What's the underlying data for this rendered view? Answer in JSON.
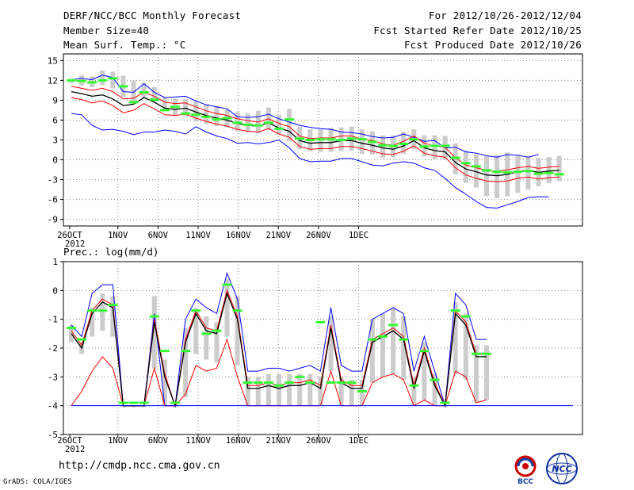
{
  "header": {
    "title": "DERF/NCC/BCC Monthly Forecast",
    "member_size": "Member Size=40",
    "variable": "Mean Surf. Temp.: °C",
    "forecast_period": "For 2012/10/26-2012/12/04",
    "refer_date": "Fcst Started Refer Date 2012/10/25",
    "produced_date": "Fcst Produced Date 2012/10/26"
  },
  "footer": {
    "url": "http://cmdp.ncc.cma.gov.cn",
    "credit": "GrADS: COLA/IGES",
    "logo_bcc": "BCC",
    "logo_ncc": "NCC"
  },
  "colors": {
    "max_min": "#0000ff",
    "member_band": "#ff0000",
    "mean": "#000000",
    "spread_bar": "#cccccc",
    "observed": "#33ff33",
    "grid": "#888888"
  },
  "chart_data": [
    {
      "type": "line",
      "title": "Mean Surf. Temp.: °C",
      "ylim": [
        -10,
        16
      ],
      "yticks": [
        -9,
        -6,
        -3,
        0,
        3,
        6,
        9,
        12,
        15
      ],
      "xtick_labels": [
        "26OCT",
        "1NOV",
        "6NOV",
        "11NOV",
        "16NOV",
        "21NOV",
        "26NOV",
        "1DEC"
      ],
      "xtick_days": [
        1,
        7,
        12,
        17,
        22,
        27,
        32,
        37
      ],
      "year_label": "2012",
      "days": 40,
      "series": [
        {
          "name": "max",
          "values": [
            7.0,
            6.8,
            5.2,
            4.5,
            4.6,
            4.3,
            3.8,
            4.2,
            4.2,
            4.5,
            4.3,
            3.9,
            5.0,
            4.2,
            3.6,
            3.2,
            2.5,
            2.6,
            2.4,
            2.6,
            3.0,
            1.8,
            0.2,
            -0.3,
            -0.2,
            -0.2,
            0.2,
            0.2,
            -0.3,
            -0.8,
            -0.9,
            -0.5,
            -0.3,
            -0.5,
            -1.2,
            -1.6,
            -2.8,
            -4.2,
            -5.2,
            -6.3,
            -7.2,
            -7.3,
            -6.8,
            -6.3,
            -5.7,
            -5.6,
            -5.6
          ]
        },
        {
          "name": "max_upper",
          "values": [
            12.1,
            12.3,
            12.1,
            12.8,
            12.4,
            10.3,
            10.2,
            11.5,
            10.2,
            9.4,
            9.5,
            9.6,
            8.9,
            8.3,
            8.0,
            7.7,
            6.5,
            6.4,
            6.5,
            6.9,
            6.2,
            5.7,
            5.2,
            4.9,
            4.7,
            4.6,
            4.2,
            4.1,
            3.9,
            3.5,
            3.3,
            3.4,
            3.9,
            3.4,
            2.8,
            2.9,
            1.8,
            1.9,
            1.2,
            1.0,
            0.6,
            0.4,
            0.8,
            0.7,
            0.4,
            0.8
          ]
        },
        {
          "name": "mean",
          "values": [
            10.3,
            10.0,
            9.6,
            9.8,
            9.2,
            8.2,
            8.4,
            9.4,
            8.7,
            7.8,
            7.6,
            7.8,
            7.2,
            6.7,
            6.3,
            6.0,
            5.5,
            5.2,
            5.1,
            5.6,
            4.8,
            4.3,
            2.9,
            2.5,
            2.6,
            2.6,
            2.9,
            2.9,
            2.5,
            2.2,
            1.8,
            1.6,
            2.1,
            2.9,
            1.8,
            1.4,
            1.2,
            -0.4,
            -1.4,
            -1.8,
            -2.3,
            -2.4,
            -2.2,
            -1.8,
            -1.6,
            -1.9,
            -1.7,
            -1.6
          ]
        },
        {
          "name": "member_upper",
          "values": [
            11.1,
            10.8,
            10.5,
            10.8,
            10.3,
            9.2,
            9.3,
            10.2,
            9.6,
            8.7,
            8.5,
            8.6,
            8.0,
            7.4,
            7.0,
            6.7,
            6.2,
            5.9,
            5.7,
            6.2,
            5.5,
            5.0,
            3.6,
            3.2,
            3.3,
            3.3,
            3.6,
            3.6,
            3.1,
            2.9,
            2.4,
            2.2,
            2.8,
            3.6,
            2.5,
            2.1,
            1.9,
            0.3,
            -0.8,
            -1.2,
            -1.6,
            -1.7,
            -1.5,
            -1.2,
            -1.0,
            -1.3,
            -1.1,
            -1.0
          ]
        },
        {
          "name": "member_lower",
          "values": [
            9.4,
            9.1,
            8.6,
            8.9,
            8.2,
            7.1,
            7.5,
            8.5,
            7.7,
            6.8,
            6.7,
            6.9,
            6.3,
            5.8,
            5.4,
            5.1,
            4.6,
            4.3,
            4.2,
            4.7,
            3.9,
            3.4,
            2.0,
            1.6,
            1.7,
            1.7,
            2.0,
            2.0,
            1.7,
            1.3,
            0.9,
            0.8,
            1.3,
            2.1,
            1.0,
            0.6,
            0.4,
            -1.2,
            -2.3,
            -2.8,
            -3.2,
            -3.3,
            -3.2,
            -2.8,
            -2.6,
            -2.9,
            -2.7,
            -2.6
          ]
        },
        {
          "name": "observed",
          "values": [
            12.0,
            11.9,
            11.7,
            12.0,
            12.3,
            11.1,
            8.7,
            10.2,
            9.1,
            7.5,
            8.0,
            7.0,
            6.8,
            6.5,
            6.1,
            6.3,
            5.6,
            5.3,
            5.2,
            5.6,
            4.7,
            6.1,
            3.2,
            3.0,
            3.1,
            3.1,
            3.0,
            3.2,
            3.1,
            2.7,
            2.2,
            2.1,
            2.4,
            3.1,
            2.0,
            2.1,
            2.1,
            0.3,
            -0.5,
            -1.0,
            -1.6,
            -1.8,
            -1.9,
            -1.8,
            -1.7,
            -2.1,
            -2.0,
            -2.2
          ]
        },
        {
          "name": "spread_high",
          "values": [
            12.2,
            12.8,
            12.6,
            13.5,
            13.3,
            12.7,
            12.0,
            11.7,
            11.0,
            9.5,
            9.2,
            9.2,
            8.9,
            8.4,
            8.1,
            7.6,
            7.2,
            7.0,
            7.4,
            7.9,
            6.8,
            7.7,
            5.0,
            4.6,
            4.6,
            4.8,
            4.9,
            5.0,
            4.6,
            4.3,
            3.7,
            3.7,
            4.2,
            4.6,
            3.7,
            3.7,
            3.6,
            2.5,
            1.4,
            0.8,
            0.5,
            0.7,
            1.1,
            0.6,
            0.4,
            0.3,
            0.4,
            0.6
          ]
        },
        {
          "name": "spread_low",
          "values": [
            11.6,
            11.2,
            11.0,
            11.3,
            10.8,
            9.5,
            8.5,
            9.3,
            8.7,
            7.4,
            6.7,
            6.6,
            5.8,
            5.4,
            5.1,
            4.9,
            4.3,
            4.2,
            4.0,
            4.5,
            3.8,
            2.8,
            1.6,
            1.3,
            1.2,
            1.2,
            1.3,
            1.4,
            0.9,
            0.8,
            0.3,
            0.4,
            0.9,
            1.6,
            0.5,
            0.1,
            0.0,
            -2.2,
            -3.5,
            -4.2,
            -5.5,
            -5.8,
            -5.5,
            -5.0,
            -4.5,
            -4.0,
            -3.5,
            -3.2
          ]
        }
      ]
    },
    {
      "type": "line",
      "title": "Prec.: log(mm/d)",
      "ylim": [
        -5,
        1
      ],
      "yticks": [
        -5,
        -4,
        -3,
        -2,
        -1,
        0,
        1
      ],
      "xtick_labels": [
        "26OCT",
        "1NOV",
        "6NOV",
        "11NOV",
        "16NOV",
        "21NOV",
        "26NOV",
        "1DEC"
      ],
      "xtick_days": [
        1,
        7,
        12,
        17,
        22,
        27,
        32,
        37
      ],
      "year_label": "2012",
      "days": 40,
      "series": [
        {
          "name": "max",
          "values": [
            -1.2,
            -1.6,
            -0.1,
            0.2,
            0.2,
            -4.0,
            -4.0,
            -4.0,
            -0.8,
            -4.0,
            -4.0,
            -1.0,
            -0.3,
            -0.6,
            -0.8,
            0.6,
            -0.3,
            -2.8,
            -2.8,
            -2.7,
            -2.7,
            -2.8,
            -2.7,
            -2.6,
            -2.8,
            -0.6,
            -2.6,
            -2.8,
            -2.8,
            -1.0,
            -0.8,
            -0.6,
            -0.8,
            -2.8,
            -1.6,
            -2.8,
            -4.0,
            -0.1,
            -0.5,
            -1.7,
            -1.7
          ]
        },
        {
          "name": "mean",
          "values": [
            -1.5,
            -2.0,
            -0.8,
            -0.4,
            -0.6,
            -4.0,
            -4.0,
            -4.0,
            -1.1,
            -3.0,
            -4.0,
            -1.8,
            -0.8,
            -1.4,
            -1.5,
            -0.1,
            -1.0,
            -3.4,
            -3.4,
            -3.3,
            -3.4,
            -3.3,
            -3.3,
            -3.2,
            -3.4,
            -1.3,
            -3.2,
            -3.4,
            -3.4,
            -1.8,
            -1.6,
            -1.4,
            -1.7,
            -3.4,
            -2.1,
            -3.3,
            -4.0,
            -0.8,
            -1.2,
            -2.3,
            -2.3
          ]
        },
        {
          "name": "member_upper",
          "values": [
            -1.4,
            -1.9,
            -0.7,
            -0.3,
            -0.5,
            -4.0,
            -4.0,
            -4.0,
            -1.0,
            -2.9,
            -4.0,
            -1.7,
            -0.7,
            -1.3,
            -1.4,
            0.0,
            -0.9,
            -3.3,
            -3.3,
            -3.2,
            -3.3,
            -3.2,
            -3.2,
            -3.1,
            -3.3,
            -1.2,
            -3.1,
            -3.3,
            -3.3,
            -1.7,
            -1.5,
            -1.3,
            -1.6,
            -3.3,
            -2.0,
            -3.2,
            -4.0,
            -0.7,
            -1.1,
            -2.2,
            -2.2
          ]
        },
        {
          "name": "member_lower",
          "values": [
            -4.0,
            -3.5,
            -2.8,
            -2.3,
            -2.7,
            -4.0,
            -4.0,
            -4.0,
            -2.7,
            -4.0,
            -4.0,
            -3.6,
            -2.6,
            -2.8,
            -2.7,
            -1.7,
            -3.0,
            -4.0,
            -4.0,
            -4.0,
            -4.0,
            -4.0,
            -4.0,
            -4.0,
            -4.0,
            -2.8,
            -4.0,
            -4.0,
            -4.0,
            -3.2,
            -3.0,
            -2.9,
            -3.1,
            -4.0,
            -3.8,
            -4.0,
            -4.0,
            -2.8,
            -3.0,
            -3.9,
            -3.8
          ]
        },
        {
          "name": "observed",
          "values": [
            -1.3,
            -1.7,
            -0.7,
            -0.7,
            -0.5,
            -3.9,
            -3.9,
            -3.9,
            -0.9,
            -2.1,
            -3.9,
            -2.1,
            -0.7,
            -1.5,
            -1.4,
            0.2,
            -0.7,
            -3.2,
            -3.2,
            -3.2,
            -3.3,
            -3.2,
            -3.0,
            -3.2,
            -1.1,
            -3.2,
            -3.2,
            -3.2,
            -3.5,
            -1.7,
            -1.6,
            -1.2,
            -1.7,
            -3.3,
            -2.1,
            -3.1,
            -3.9,
            -0.7,
            -0.9,
            -2.2,
            -2.2
          ]
        },
        {
          "name": "spread_high",
          "values": [
            -1.2,
            -1.8,
            -0.6,
            -0.1,
            -0.2,
            -4.0,
            -4.0,
            -4.0,
            -0.2,
            -2.4,
            -4.0,
            -1.3,
            -0.6,
            -0.9,
            -1.1,
            0.4,
            -0.2,
            -3.0,
            -3.0,
            -2.9,
            -2.9,
            -2.9,
            -2.9,
            -2.9,
            -3.0,
            -0.9,
            -3.0,
            -3.1,
            -3.1,
            -1.0,
            -0.8,
            -0.6,
            -0.9,
            -3.0,
            -1.8,
            -2.9,
            -4.0,
            -0.4,
            -0.8,
            -1.9,
            -1.9
          ]
        },
        {
          "name": "spread_low",
          "values": [
            -1.8,
            -2.2,
            -1.6,
            -1.4,
            -1.6,
            -4.0,
            -4.0,
            -4.0,
            -2.7,
            -4.0,
            -4.0,
            -3.7,
            -2.2,
            -2.4,
            -2.5,
            -1.6,
            -2.6,
            -4.0,
            -4.0,
            -4.0,
            -4.0,
            -4.0,
            -4.0,
            -4.0,
            -4.0,
            -2.8,
            -4.0,
            -4.0,
            -4.0,
            -3.2,
            -3.0,
            -2.9,
            -3.1,
            -4.0,
            -3.8,
            -4.0,
            -4.0,
            -2.9,
            -3.1,
            -3.9,
            -3.8
          ]
        }
      ]
    }
  ]
}
